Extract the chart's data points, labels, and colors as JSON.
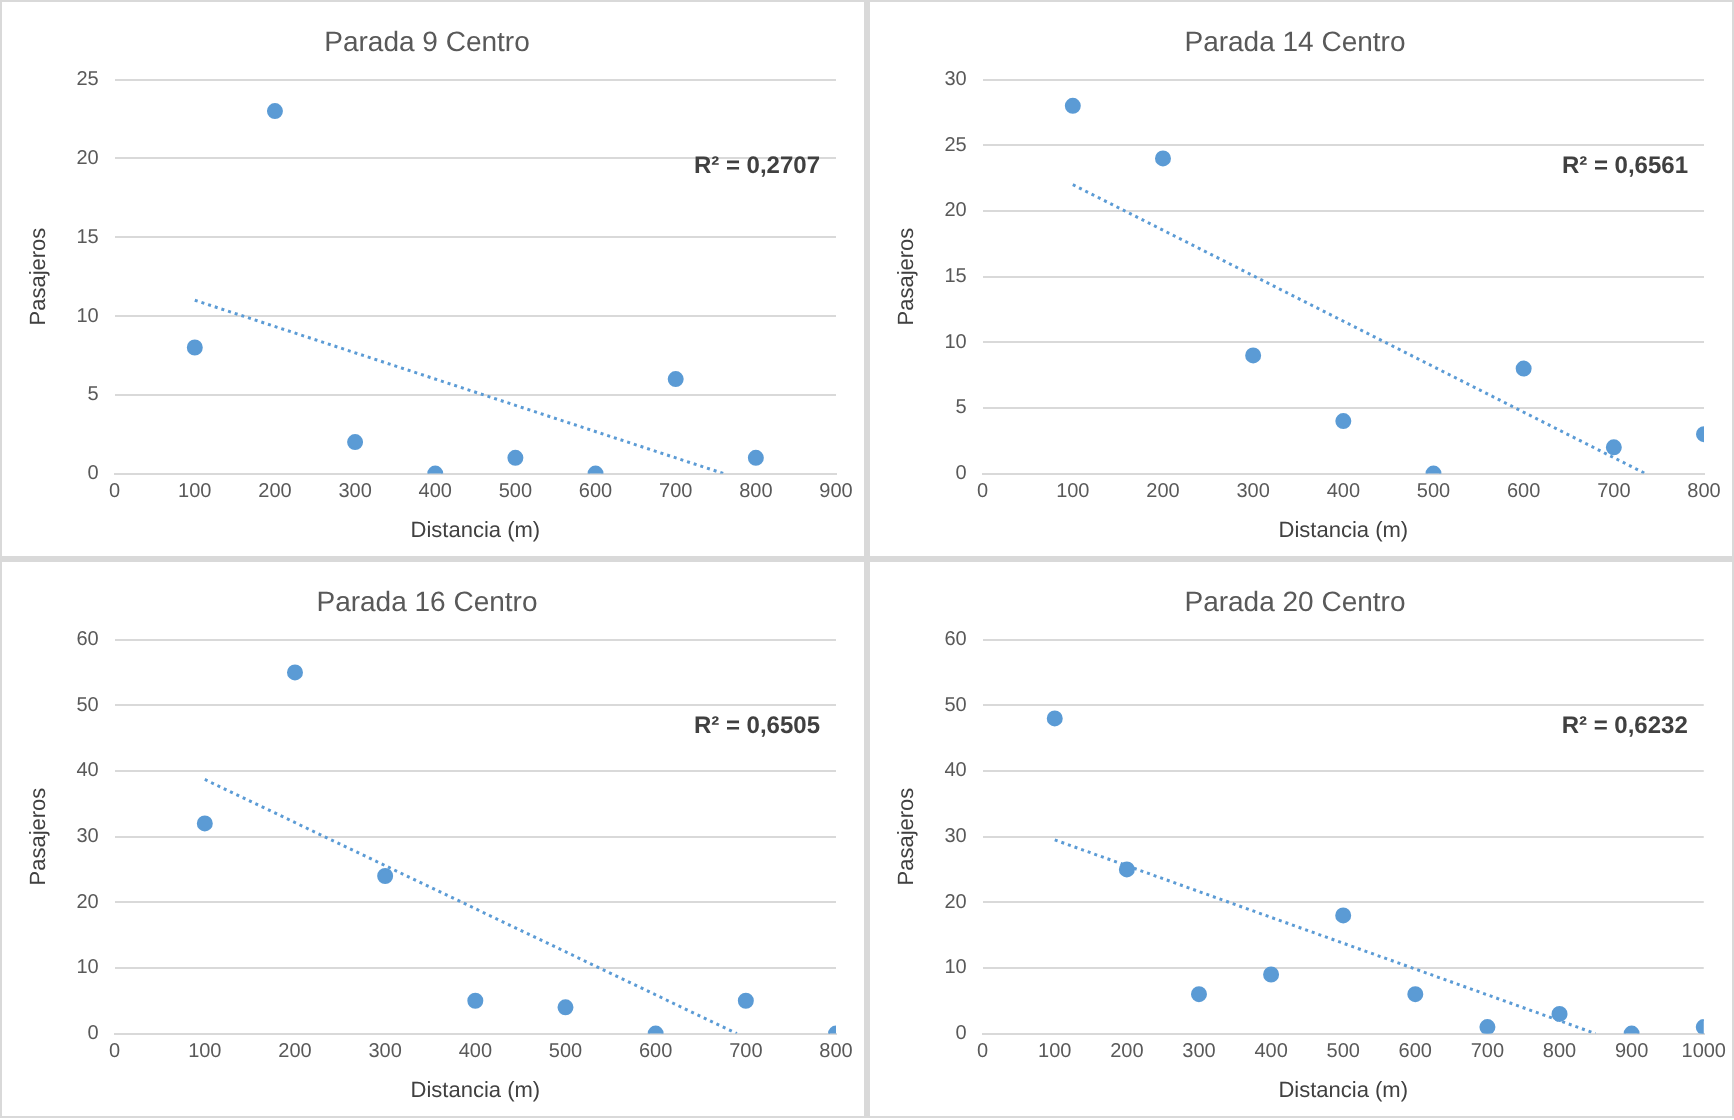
{
  "chart_data": [
    {
      "type": "scatter",
      "title": "Parada 9 Centro",
      "xlabel": "Distancia (m)",
      "ylabel": "Pasajeros",
      "x": [
        100,
        200,
        300,
        400,
        500,
        600,
        700,
        800
      ],
      "series": [
        {
          "color": "#5b9bd5",
          "values": [
            8,
            23,
            2,
            0,
            1,
            0,
            6,
            1
          ],
          "marker": "circle"
        },
        {
          "type": "line",
          "x": [
            100,
            760
          ],
          "values": [
            11,
            0
          ],
          "color": "#5b9bd5",
          "line_style": "dotted",
          "marker": "none"
        }
      ],
      "xlim": [
        0,
        900
      ],
      "xticks": [
        0,
        100,
        200,
        300,
        400,
        500,
        600,
        700,
        800,
        900
      ],
      "ylim": [
        0,
        25
      ],
      "yticks": [
        0,
        5,
        10,
        15,
        20,
        25
      ],
      "grid": "y",
      "legend": false,
      "annotations": [
        "R² = 0,2707"
      ]
    },
    {
      "type": "scatter",
      "title": "Parada 14 Centro",
      "xlabel": "Distancia (m)",
      "ylabel": "Pasajeros",
      "x": [
        100,
        200,
        300,
        400,
        500,
        600,
        700,
        800
      ],
      "series": [
        {
          "color": "#5b9bd5",
          "values": [
            28,
            24,
            9,
            4,
            0,
            8,
            2,
            3
          ],
          "marker": "circle"
        },
        {
          "type": "line",
          "x": [
            100,
            735
          ],
          "values": [
            22,
            0
          ],
          "color": "#5b9bd5",
          "line_style": "dotted",
          "marker": "none"
        }
      ],
      "xlim": [
        0,
        800
      ],
      "xticks": [
        0,
        100,
        200,
        300,
        400,
        500,
        600,
        700,
        800
      ],
      "ylim": [
        0,
        30
      ],
      "yticks": [
        0,
        5,
        10,
        15,
        20,
        25,
        30
      ],
      "grid": "y",
      "legend": false,
      "annotations": [
        "R² = 0,6561"
      ]
    },
    {
      "type": "scatter",
      "title": "Parada 16 Centro",
      "xlabel": "Distancia (m)",
      "ylabel": "Pasajeros",
      "x": [
        100,
        200,
        300,
        400,
        500,
        600,
        700,
        800
      ],
      "series": [
        {
          "color": "#5b9bd5",
          "values": [
            32,
            55,
            24,
            5,
            4,
            0,
            5,
            0
          ],
          "marker": "circle"
        },
        {
          "type": "line",
          "x": [
            100,
            690
          ],
          "values": [
            38.7,
            0
          ],
          "color": "#5b9bd5",
          "line_style": "dotted",
          "marker": "none"
        }
      ],
      "xlim": [
        0,
        800
      ],
      "xticks": [
        0,
        100,
        200,
        300,
        400,
        500,
        600,
        700,
        800
      ],
      "ylim": [
        0,
        60
      ],
      "yticks": [
        0,
        10,
        20,
        30,
        40,
        50,
        60
      ],
      "grid": "y",
      "legend": false,
      "annotations": [
        "R² = 0,6505"
      ]
    },
    {
      "type": "scatter",
      "title": "Parada 20 Centro",
      "xlabel": "Distancia (m)",
      "ylabel": "Pasajeros",
      "x": [
        100,
        200,
        300,
        400,
        500,
        600,
        700,
        800,
        900,
        1000
      ],
      "series": [
        {
          "color": "#5b9bd5",
          "values": [
            48,
            25,
            6,
            9,
            18,
            6,
            1,
            3,
            0,
            1
          ],
          "marker": "circle"
        },
        {
          "type": "line",
          "x": [
            100,
            850
          ],
          "values": [
            29.5,
            0
          ],
          "color": "#5b9bd5",
          "line_style": "dotted",
          "marker": "none"
        }
      ],
      "xlim": [
        0,
        1000
      ],
      "xticks": [
        0,
        100,
        200,
        300,
        400,
        500,
        600,
        700,
        800,
        900,
        1000
      ],
      "ylim": [
        0,
        60
      ],
      "yticks": [
        0,
        10,
        20,
        30,
        40,
        50,
        60
      ],
      "grid": "y",
      "legend": false,
      "annotations": [
        "R² = 0,6232"
      ]
    }
  ]
}
